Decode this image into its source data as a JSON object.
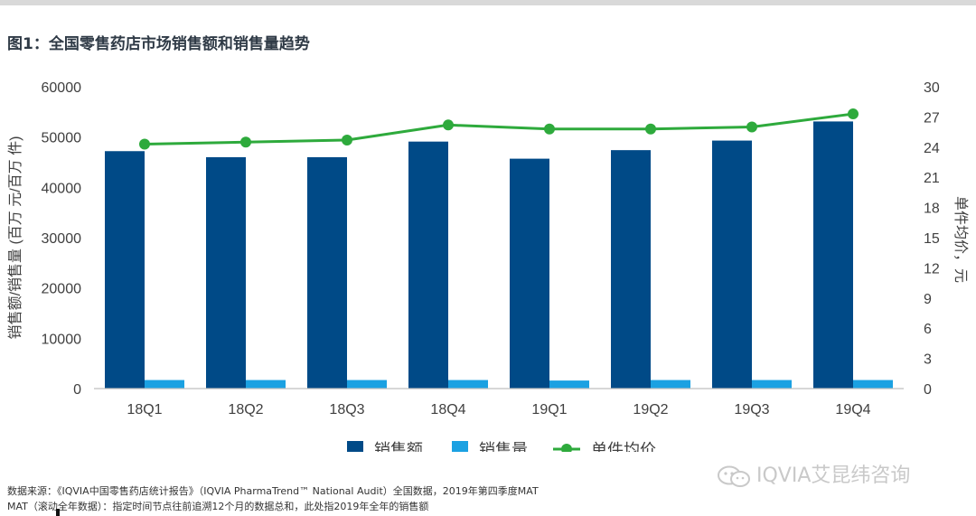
{
  "title": "图1：全国零售药店市场销售额和销售量趋势",
  "chart_data": {
    "type": "bar",
    "categories": [
      "18Q1",
      "18Q2",
      "18Q3",
      "18Q4",
      "19Q1",
      "19Q2",
      "19Q3",
      "19Q4"
    ],
    "series": [
      {
        "name": "销售额",
        "type": "bar",
        "axis": "left",
        "color": "#004a87",
        "values": [
          47200,
          46000,
          46000,
          49100,
          45700,
          47400,
          49300,
          53100
        ]
      },
      {
        "name": "销售量",
        "type": "bar",
        "axis": "left",
        "color": "#1ba1e2",
        "values": [
          1700,
          1700,
          1700,
          1700,
          1600,
          1700,
          1700,
          1700
        ]
      },
      {
        "name": "单件均价",
        "type": "line",
        "axis": "right",
        "color": "#2eaa3c",
        "values": [
          24.3,
          24.5,
          24.7,
          26.2,
          25.8,
          25.8,
          26.0,
          27.3
        ]
      }
    ],
    "ylabel": "销售额/销售量 (百万 元/百万 件)",
    "y2label": "单件均价，元",
    "ylim": [
      0,
      60000
    ],
    "yticks": [
      0,
      10000,
      20000,
      30000,
      40000,
      50000,
      60000
    ],
    "y2lim": [
      0,
      30
    ],
    "y2ticks": [
      0,
      3,
      6,
      9,
      12,
      15,
      18,
      21,
      24,
      27,
      30
    ],
    "grid": false,
    "legend_position": "bottom"
  },
  "footer": {
    "line1": "数据来源：《IQVIA中国零售药店统计报告》（IQVIA PharmaTrend™ National Audit）全国数据，2019年第四季度MAT",
    "line2": "MAT（滚动全年数据）：指定时间节点往前追溯12个月的数据总和，此处指2019年全年的销售额"
  },
  "watermark": "IQVIA艾昆纬咨询",
  "colors": {
    "axis": "#bfbfbf",
    "text": "#404040"
  }
}
